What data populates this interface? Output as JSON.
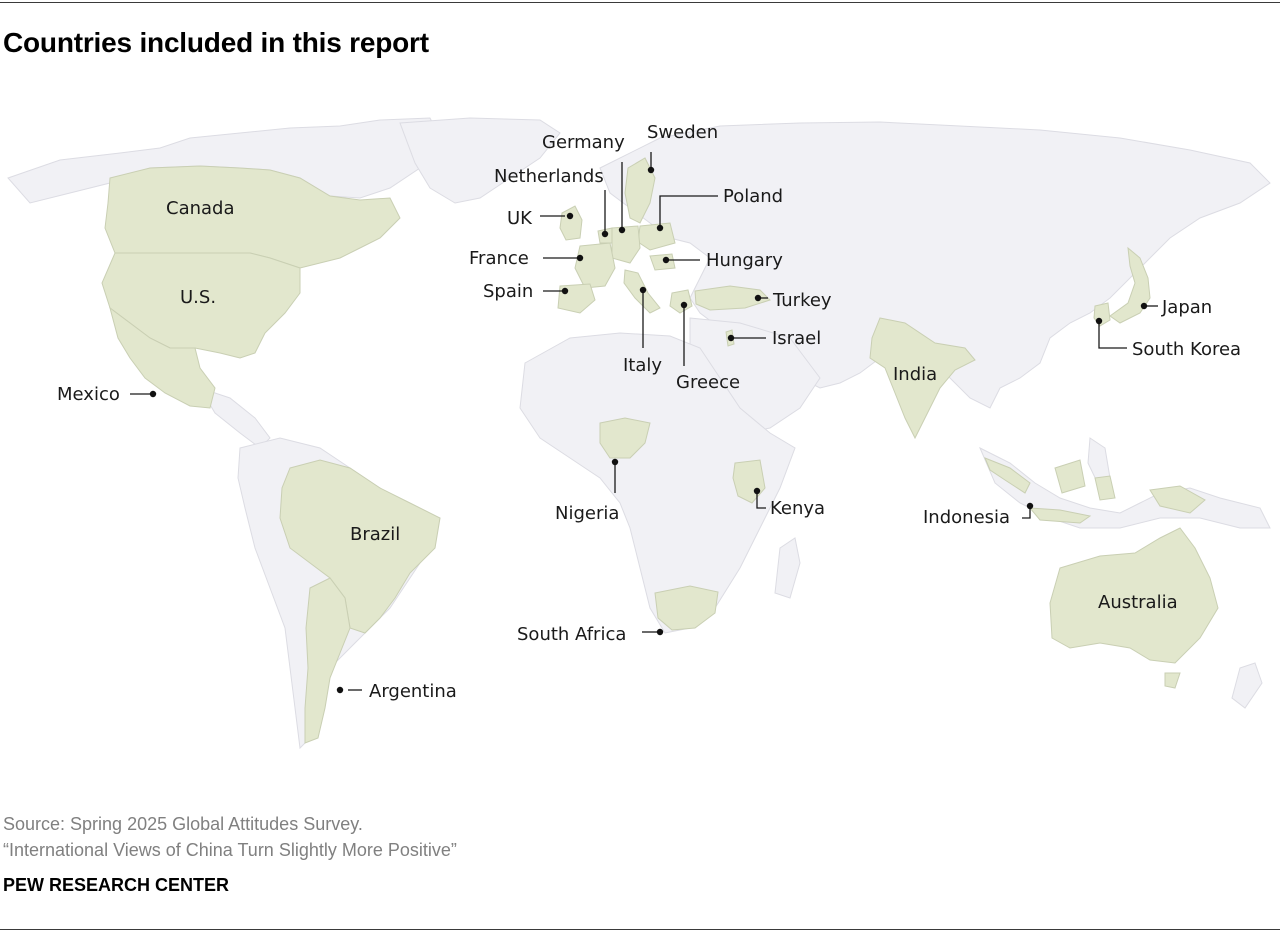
{
  "title": "Countries included in this report",
  "colors": {
    "surveyed": "#e2e7cd",
    "land": "#f1f1f5",
    "borders": "#dcdce3",
    "ocean": "#ffffff"
  },
  "countries": [
    {
      "name": "Canada"
    },
    {
      "name": "U.S."
    },
    {
      "name": "Mexico"
    },
    {
      "name": "Brazil"
    },
    {
      "name": "Argentina"
    },
    {
      "name": "UK"
    },
    {
      "name": "Netherlands"
    },
    {
      "name": "Germany"
    },
    {
      "name": "Sweden"
    },
    {
      "name": "Poland"
    },
    {
      "name": "France"
    },
    {
      "name": "Hungary"
    },
    {
      "name": "Spain"
    },
    {
      "name": "Italy"
    },
    {
      "name": "Greece"
    },
    {
      "name": "Turkey"
    },
    {
      "name": "Israel"
    },
    {
      "name": "Nigeria"
    },
    {
      "name": "Kenya"
    },
    {
      "name": "South Africa"
    },
    {
      "name": "India"
    },
    {
      "name": "Japan"
    },
    {
      "name": "South Korea"
    },
    {
      "name": "Indonesia"
    },
    {
      "name": "Australia"
    }
  ],
  "source": "Source: Spring 2025 Global Attitudes Survey.",
  "report": "“International Views of China Turn Slightly More Positive”",
  "brand": "PEW RESEARCH CENTER"
}
